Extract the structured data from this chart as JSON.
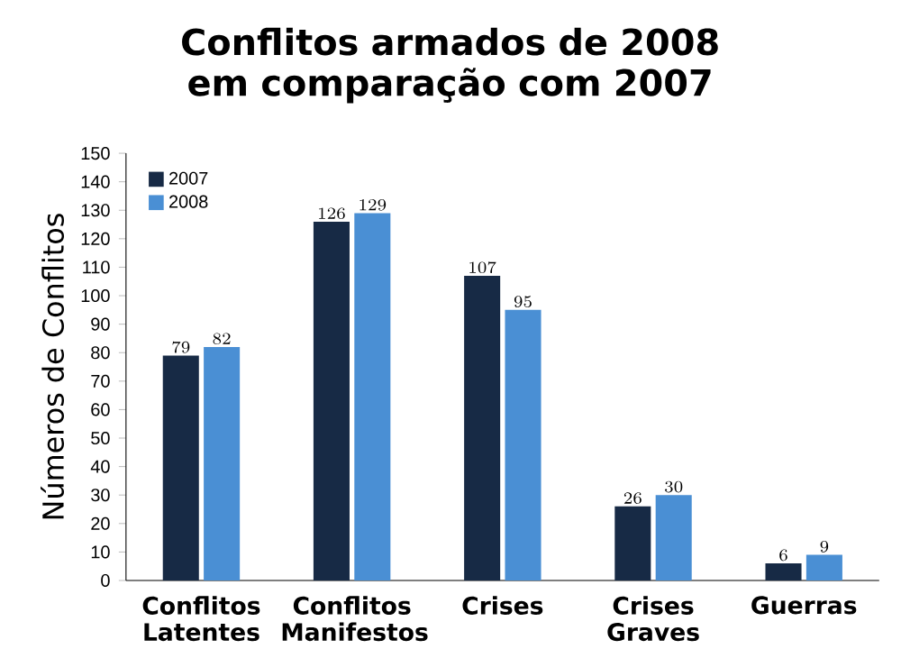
{
  "chart_data": {
    "type": "bar",
    "title": "Conflitos armados de 2008 em comparação com 2007",
    "ylabel": "Números de Conflitos",
    "categories": [
      "Conflitos Latentes",
      "Conflitos Manifestos",
      "Crises",
      "Crises Graves",
      "Guerras"
    ],
    "series": [
      {
        "name": "2007",
        "color": "#172a45",
        "values": [
          79,
          126,
          107,
          26,
          6
        ]
      },
      {
        "name": "2008",
        "color": "#4a8fd4",
        "values": [
          82,
          129,
          95,
          30,
          9
        ]
      }
    ],
    "ylim": [
      0,
      150
    ],
    "yticks": [
      0,
      10,
      20,
      30,
      40,
      50,
      60,
      70,
      80,
      90,
      100,
      110,
      120,
      130,
      140,
      150
    ],
    "data_labels": true,
    "legend": "top left",
    "grid": false
  }
}
